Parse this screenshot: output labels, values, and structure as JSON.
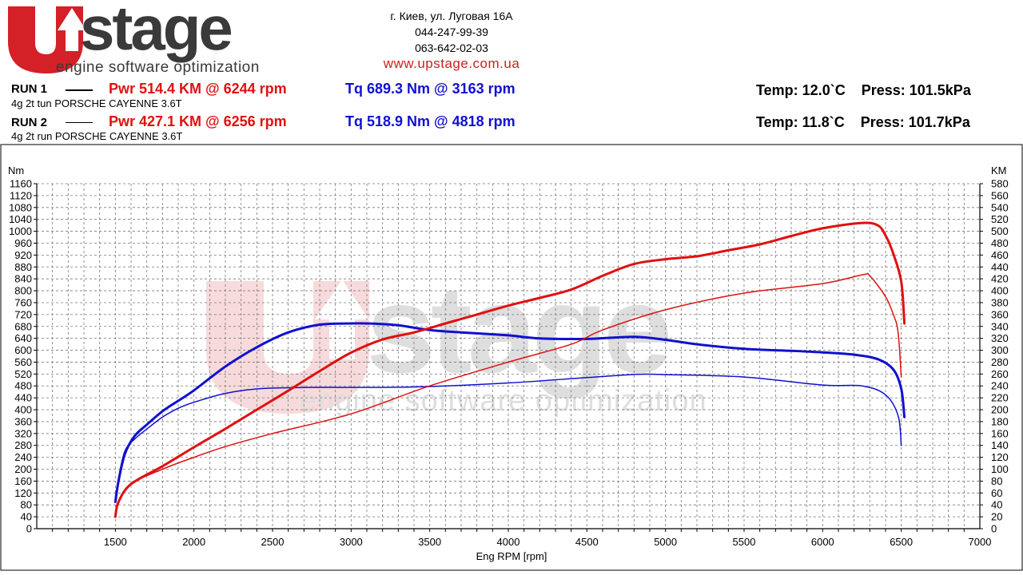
{
  "brand": {
    "logo_text": "UPstage",
    "tagline": "engine software optimization",
    "colors": {
      "red": "#d42027",
      "gray": "#3a3a3a"
    }
  },
  "contact": {
    "address": "г. Киев, ул. Луговая 16А",
    "phone1": "044-247-99-39",
    "phone2": "063-642-02-03",
    "website": "www.upstage.com.ua"
  },
  "runs": [
    {
      "label": "RUN 1",
      "pwr": "Pwr  514.4 KM @ 6244 rpm",
      "tq": "Tq 689.3 Nm @ 3163 rpm",
      "temp": "Temp: 12.0`C",
      "press": "Press: 101.5kPa",
      "description": "4g 2t tun PORSCHE CAYENNE 3.6T"
    },
    {
      "label": "RUN 2",
      "pwr": "Pwr  427.1 KM @ 6256 rpm",
      "tq": "Tq 518.9 Nm @ 4818 rpm",
      "temp": "Temp: 11.8`C",
      "press": "Press: 101.7kPa",
      "description": "4g 2t run PORSCHE CAYENNE 3.6T"
    }
  ],
  "chart_data": {
    "type": "line",
    "xlabel": "Eng RPM [rpm]",
    "y_left_label": "Nm",
    "y_right_label": "KM",
    "xlim": [
      1000,
      7000
    ],
    "xticks": [
      1500,
      2000,
      2500,
      3000,
      3500,
      4000,
      4500,
      5000,
      5500,
      6000,
      6500,
      7000
    ],
    "ylim_left": [
      0,
      1160
    ],
    "ylim_right": [
      0,
      580
    ],
    "grid": true,
    "colors": {
      "power": "#e01010",
      "torque": "#1010d0"
    },
    "series": [
      {
        "axis": "left",
        "kind": "torque",
        "run": 1,
        "bold": true,
        "x": [
          1500,
          1520,
          1560,
          1620,
          1700,
          1800,
          1900,
          2000,
          2200,
          2400,
          2600,
          2800,
          3000,
          3163,
          3300,
          3500,
          3700,
          4000,
          4200,
          4500,
          4800,
          5000,
          5200,
          5500,
          5800,
          6000,
          6200,
          6350,
          6450,
          6500,
          6520
        ],
        "y": [
          90,
          160,
          250,
          310,
          350,
          395,
          430,
          465,
          545,
          610,
          660,
          686,
          690,
          689,
          684,
          668,
          660,
          650,
          640,
          638,
          645,
          635,
          620,
          605,
          598,
          593,
          585,
          570,
          535,
          470,
          375
        ]
      },
      {
        "axis": "left",
        "kind": "torque",
        "run": 2,
        "bold": false,
        "x": [
          1500,
          1520,
          1560,
          1620,
          1700,
          1800,
          1900,
          2000,
          2200,
          2400,
          2600,
          2800,
          3000,
          3200,
          3500,
          4000,
          4500,
          4818,
          5000,
          5500,
          6000,
          6250,
          6400,
          6480,
          6500
        ],
        "y": [
          100,
          170,
          260,
          300,
          335,
          375,
          405,
          425,
          455,
          470,
          474,
          475,
          475,
          475,
          478,
          490,
          508,
          519,
          518,
          510,
          483,
          480,
          450,
          380,
          280
        ]
      },
      {
        "axis": "right",
        "kind": "power",
        "run": 1,
        "bold": true,
        "x": [
          1500,
          1520,
          1600,
          1800,
          2000,
          2200,
          2400,
          2600,
          2800,
          3000,
          3200,
          3400,
          3600,
          3800,
          4000,
          4200,
          4400,
          4600,
          4800,
          5000,
          5200,
          5400,
          5600,
          5800,
          6000,
          6244,
          6350,
          6400,
          6450,
          6500,
          6520
        ],
        "y": [
          20,
          45,
          75,
          105,
          137,
          168,
          200,
          232,
          265,
          296,
          318,
          330,
          345,
          360,
          375,
          388,
          402,
          425,
          445,
          453,
          458,
          468,
          478,
          492,
          505,
          514,
          510,
          493,
          462,
          415,
          345
        ]
      },
      {
        "axis": "right",
        "kind": "power",
        "run": 2,
        "bold": false,
        "x": [
          1500,
          1520,
          1600,
          1800,
          2000,
          2200,
          2500,
          3000,
          3500,
          4000,
          4400,
          4600,
          5000,
          5500,
          6000,
          6256,
          6300,
          6400,
          6450,
          6480,
          6500
        ],
        "y": [
          20,
          45,
          75,
          100,
          120,
          138,
          160,
          193,
          240,
          280,
          310,
          334,
          368,
          396,
          412,
          427,
          425,
          390,
          360,
          330,
          255
        ]
      }
    ]
  }
}
